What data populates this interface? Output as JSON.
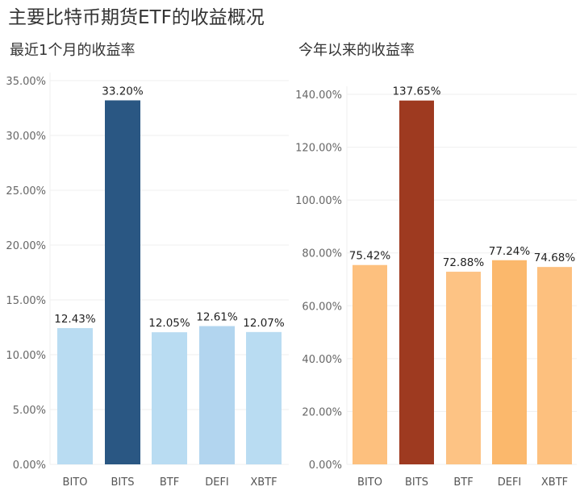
{
  "title": "主要比特币期货ETF的收益概况",
  "chart_data": [
    {
      "type": "bar",
      "title": "最近1个月的收益率",
      "categories": [
        "BITO",
        "BITS",
        "BTF",
        "DEFI",
        "XBTF"
      ],
      "values": [
        12.43,
        33.2,
        12.05,
        12.61,
        12.07
      ],
      "value_labels": [
        "12.43%",
        "33.20%",
        "12.05%",
        "12.61%",
        "12.07%"
      ],
      "ylim": [
        0,
        35
      ],
      "yticks": [
        0,
        5,
        10,
        15,
        20,
        25,
        30,
        35
      ],
      "ytick_labels": [
        "0.00%",
        "5.00%",
        "10.00%",
        "15.00%",
        "20.00%",
        "25.00%",
        "30.00%",
        "35.00%"
      ],
      "colors": [
        "#b9dcf2",
        "#2a5783",
        "#b9dcf2",
        "#b2d5ef",
        "#b9dcf2"
      ],
      "grid": true
    },
    {
      "type": "bar",
      "title": "今年以来的收益率",
      "categories": [
        "BITO",
        "BITS",
        "BTF",
        "DEFI",
        "XBTF"
      ],
      "values": [
        75.42,
        137.65,
        72.88,
        77.24,
        74.68
      ],
      "value_labels": [
        "75.42%",
        "137.65%",
        "72.88%",
        "77.24%",
        "74.68%"
      ],
      "ylim": [
        0,
        140
      ],
      "yticks": [
        0,
        20,
        40,
        60,
        80,
        100,
        120,
        140
      ],
      "ytick_labels": [
        "0.00%",
        "20.00%",
        "40.00%",
        "60.00%",
        "80.00%",
        "100.00%",
        "120.00%",
        "140.00%"
      ],
      "colors": [
        "#fdc07e",
        "#9e3a20",
        "#fdc384",
        "#fbb86c",
        "#fdc07e"
      ],
      "grid": true
    }
  ]
}
